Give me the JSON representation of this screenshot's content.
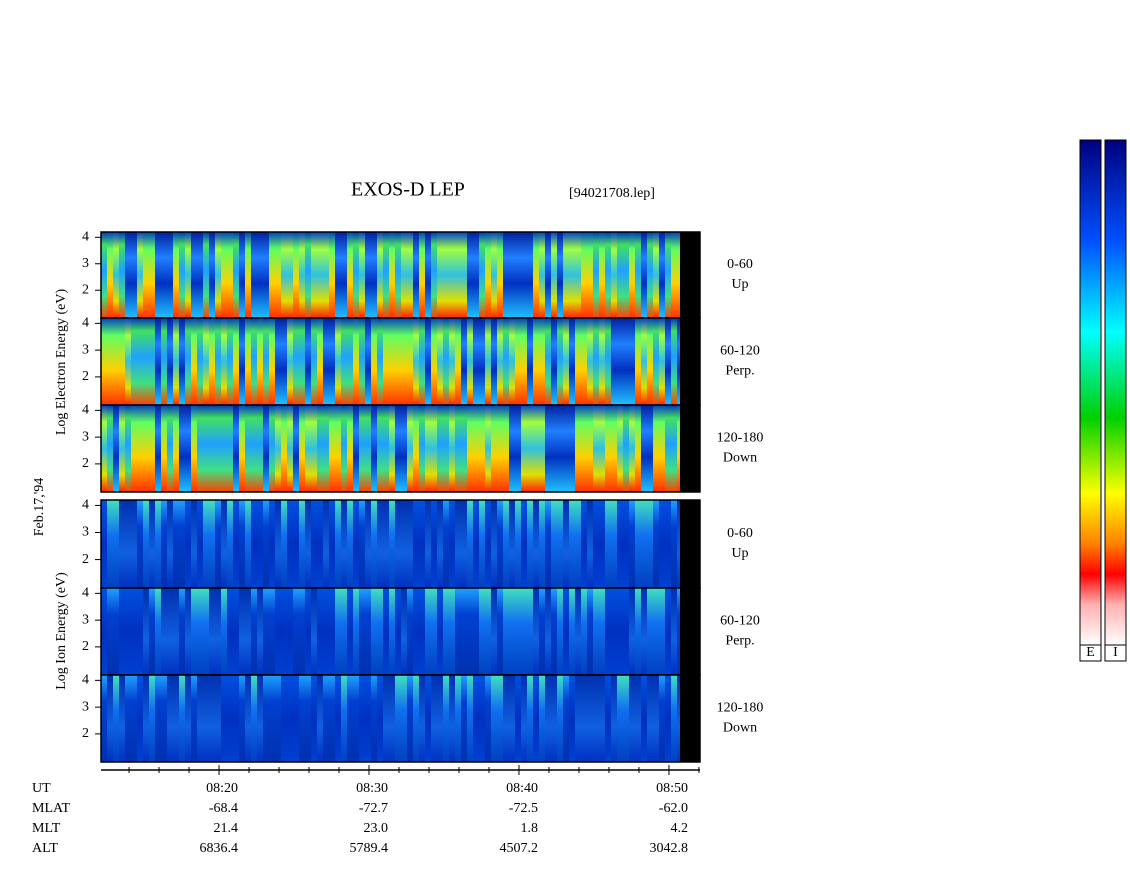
{
  "chart_data": {
    "type": "spectrogram",
    "title": "EXOS-D LEP",
    "file": "[94021708.lep]",
    "date": "Feb.17,'94",
    "groups": [
      {
        "ylabel": "Log  Electron  Energy (eV)",
        "ylim": [
          0.95,
          4.2
        ],
        "yticks": [
          2,
          3,
          4
        ],
        "panels": [
          {
            "angle": "0-60",
            "direction": "Up"
          },
          {
            "angle": "60-120",
            "direction": "Perp."
          },
          {
            "angle": "120-180",
            "direction": "Down"
          }
        ]
      },
      {
        "ylabel": "Log  Ion  Energy (eV)",
        "ylim": [
          0.95,
          4.2
        ],
        "yticks": [
          2,
          3,
          4
        ],
        "panels": [
          {
            "angle": "0-60",
            "direction": "Up"
          },
          {
            "angle": "60-120",
            "direction": "Perp."
          },
          {
            "angle": "120-180",
            "direction": "Down"
          }
        ]
      }
    ],
    "xlabel": "UT",
    "xlim": [
      492.13,
      532.07
    ],
    "xticks": [
      {
        "value": 500,
        "label": "08:20"
      },
      {
        "value": 510,
        "label": "08:30"
      },
      {
        "value": 520,
        "label": "08:40"
      },
      {
        "value": 530,
        "label": "08:50"
      }
    ],
    "xminorticks": [
      494,
      496,
      498,
      502,
      504,
      506,
      508,
      512,
      514,
      516,
      518,
      522,
      524,
      526,
      528,
      532
    ],
    "rows": [
      {
        "label": "MLAT",
        "values": [
          "-68.4",
          "-72.7",
          "-72.5",
          "-62.0"
        ]
      },
      {
        "label": "MLT",
        "values": [
          "21.4",
          "23.0",
          "1.8",
          "4.2"
        ]
      },
      {
        "label": "ALT",
        "values": [
          "6836.4",
          "5789.4",
          "4507.2",
          "3042.8"
        ]
      }
    ],
    "colorbars": [
      "E",
      "I"
    ]
  }
}
